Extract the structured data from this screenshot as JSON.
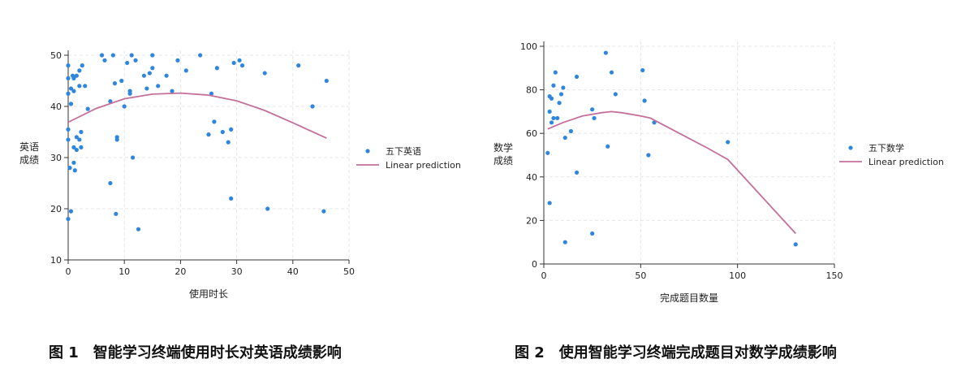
{
  "captions": {
    "fig1": "图 1　智能学习终端使用时长对英语成绩影响",
    "fig2": "图 2　使用智能学习终端完成题目对数学成绩影响"
  },
  "colors": {
    "scatter": "#2e86de",
    "line": "#c4709a",
    "grid": "#e6e6e6"
  },
  "chart_data": [
    {
      "type": "scatter",
      "title": "",
      "xlabel": "使用时长",
      "ylabel": "英语\n成绩",
      "xlim": [
        0,
        50
      ],
      "ylim": [
        10,
        50
      ],
      "xticks": [
        0,
        10,
        20,
        30,
        40,
        50
      ],
      "yticks": [
        10,
        20,
        30,
        40,
        50
      ],
      "grid": true,
      "legend_position": "right",
      "series": [
        {
          "name": "五下英语",
          "kind": "scatter",
          "points": [
            [
              0,
              48
            ],
            [
              0,
              45.5
            ],
            [
              0,
              42.5
            ],
            [
              0,
              35.5
            ],
            [
              0,
              33.5
            ],
            [
              0,
              18
            ],
            [
              0.3,
              28
            ],
            [
              0.5,
              19.5
            ],
            [
              0.5,
              43.5
            ],
            [
              0.5,
              40.5
            ],
            [
              0.8,
              46
            ],
            [
              1,
              45.5
            ],
            [
              1,
              43
            ],
            [
              1,
              32
            ],
            [
              1,
              29
            ],
            [
              1.2,
              27.5
            ],
            [
              1.5,
              34
            ],
            [
              1.5,
              31.5
            ],
            [
              1.5,
              46
            ],
            [
              2,
              47
            ],
            [
              2,
              44
            ],
            [
              2,
              33.5
            ],
            [
              2.3,
              35
            ],
            [
              2.3,
              32
            ],
            [
              2.5,
              48
            ],
            [
              3,
              44
            ],
            [
              3.5,
              39.5
            ],
            [
              6,
              50
            ],
            [
              6.5,
              49
            ],
            [
              7.5,
              41
            ],
            [
              7.5,
              25
            ],
            [
              8,
              50
            ],
            [
              8.3,
              44.5
            ],
            [
              8.5,
              19
            ],
            [
              8.7,
              34
            ],
            [
              8.7,
              33.5
            ],
            [
              9.5,
              45
            ],
            [
              10,
              40
            ],
            [
              10.5,
              48.5
            ],
            [
              11,
              43
            ],
            [
              11,
              42.5
            ],
            [
              11.3,
              50
            ],
            [
              11.5,
              30
            ],
            [
              12,
              49
            ],
            [
              12.5,
              16
            ],
            [
              13.5,
              46
            ],
            [
              14,
              43.5
            ],
            [
              14.5,
              46.5
            ],
            [
              15,
              50
            ],
            [
              15,
              47.5
            ],
            [
              16,
              44
            ],
            [
              17.5,
              46
            ],
            [
              18.5,
              43
            ],
            [
              19.5,
              49
            ],
            [
              21,
              47
            ],
            [
              23.5,
              50
            ],
            [
              25,
              34.5
            ],
            [
              25.5,
              42.5
            ],
            [
              26,
              37
            ],
            [
              26.5,
              47.5
            ],
            [
              27.5,
              35
            ],
            [
              28.5,
              33
            ],
            [
              29,
              35.5
            ],
            [
              29,
              22
            ],
            [
              29.5,
              48.5
            ],
            [
              30.5,
              49
            ],
            [
              31,
              48
            ],
            [
              35,
              46.5
            ],
            [
              35.5,
              20
            ],
            [
              41,
              48
            ],
            [
              43.5,
              40
            ],
            [
              45.5,
              19.5
            ],
            [
              46,
              45
            ]
          ]
        },
        {
          "name": "Linear prediction",
          "kind": "line",
          "points": [
            [
              0,
              36.9
            ],
            [
              5,
              39.6
            ],
            [
              10,
              41.5
            ],
            [
              15,
              42.4
            ],
            [
              20,
              42.6
            ],
            [
              25,
              42.2
            ],
            [
              30,
              41.1
            ],
            [
              35,
              39.2
            ],
            [
              40,
              36.8
            ],
            [
              46,
              33.8
            ]
          ]
        }
      ]
    },
    {
      "type": "scatter",
      "title": "",
      "xlabel": "完成题目数量",
      "ylabel": "数学\n成绩",
      "xlim": [
        0,
        150
      ],
      "ylim": [
        0,
        100
      ],
      "xticks": [
        0,
        50,
        100,
        150
      ],
      "yticks": [
        0,
        20,
        40,
        60,
        80,
        100
      ],
      "grid": true,
      "legend_position": "right",
      "series": [
        {
          "name": "五下数学",
          "kind": "scatter",
          "points": [
            [
              2,
              51
            ],
            [
              3,
              28
            ],
            [
              3,
              77
            ],
            [
              3,
              70
            ],
            [
              4,
              76
            ],
            [
              4,
              65
            ],
            [
              5,
              82
            ],
            [
              5,
              67
            ],
            [
              6,
              88
            ],
            [
              7,
              67
            ],
            [
              8,
              74
            ],
            [
              9,
              78
            ],
            [
              10,
              81
            ],
            [
              11,
              58
            ],
            [
              11,
              10
            ],
            [
              14,
              61
            ],
            [
              17,
              86
            ],
            [
              17,
              42
            ],
            [
              25,
              71
            ],
            [
              25,
              14
            ],
            [
              26,
              67
            ],
            [
              32,
              97
            ],
            [
              33,
              54
            ],
            [
              35,
              88
            ],
            [
              37,
              78
            ],
            [
              51,
              89
            ],
            [
              52,
              75
            ],
            [
              54,
              50
            ],
            [
              57,
              65
            ],
            [
              95,
              56
            ],
            [
              130,
              9
            ]
          ]
        },
        {
          "name": "Linear prediction",
          "kind": "line",
          "points": [
            [
              2,
              62
            ],
            [
              10,
              65
            ],
            [
              20,
              68
            ],
            [
              30,
              69.5
            ],
            [
              35,
              70
            ],
            [
              40,
              69.5
            ],
            [
              50,
              68
            ],
            [
              55,
              67
            ],
            [
              70,
              60
            ],
            [
              85,
              53
            ],
            [
              95,
              48
            ],
            [
              130,
              14
            ]
          ]
        }
      ]
    }
  ]
}
